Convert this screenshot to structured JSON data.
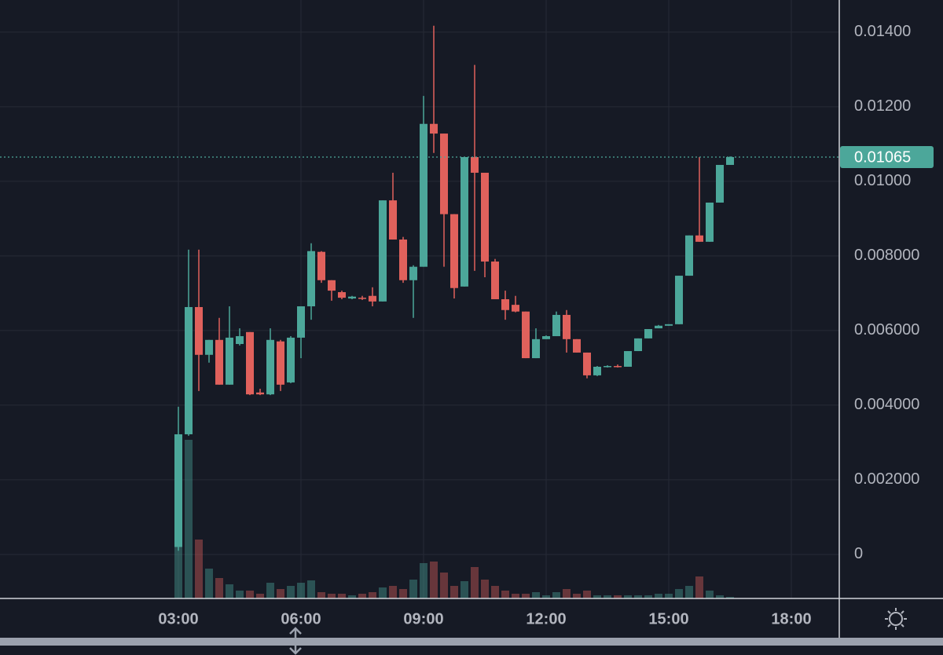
{
  "chart_data": {
    "type": "candlestick",
    "x": [
      "03:00",
      "03:15",
      "03:30",
      "03:45",
      "04:00",
      "04:15",
      "04:30",
      "04:45",
      "05:00",
      "05:15",
      "05:30",
      "05:45",
      "06:00",
      "06:15",
      "06:30",
      "06:45",
      "07:00",
      "07:15",
      "07:30",
      "07:45",
      "08:00",
      "08:15",
      "08:30",
      "08:45",
      "09:00",
      "09:15",
      "09:30",
      "09:45",
      "10:00",
      "10:15",
      "10:30",
      "10:45",
      "11:00",
      "11:15",
      "11:30",
      "11:45",
      "12:00",
      "12:15",
      "12:30",
      "12:45",
      "13:00",
      "13:15",
      "13:30",
      "13:45",
      "14:00",
      "14:15",
      "14:30",
      "14:45",
      "15:00",
      "15:15",
      "15:30",
      "15:45",
      "16:00",
      "16:15",
      "16:30"
    ],
    "open": [
      0.0002,
      0.00322,
      0.00663,
      0.00535,
      0.00575,
      0.00455,
      0.00564,
      0.00596,
      0.00434,
      0.00429,
      0.00571,
      0.00461,
      0.00581,
      0.00665,
      0.00811,
      0.00735,
      0.00703,
      0.00686,
      0.00688,
      0.00693,
      0.00678,
      0.00949,
      0.00844,
      0.00735,
      0.00771,
      0.01154,
      0.01128,
      0.00912,
      0.00718,
      0.01065,
      0.01023,
      0.00785,
      0.00684,
      0.00669,
      0.00651,
      0.00526,
      0.00577,
      0.00585,
      0.00642,
      0.00577,
      0.00541,
      0.0048,
      0.00503,
      0.00505,
      0.00503,
      0.00545,
      0.00579,
      0.00606,
      0.00613,
      0.00617,
      0.00747,
      0.00855,
      0.00838,
      0.00943,
      0.01044
    ],
    "high": [
      0.00396,
      0.00817,
      0.00817,
      0.00575,
      0.00634,
      0.00665,
      0.00606,
      0.00596,
      0.00444,
      0.00606,
      0.00575,
      0.00585,
      0.00665,
      0.00834,
      0.00813,
      0.00735,
      0.00707,
      0.00693,
      0.00693,
      0.00716,
      0.00949,
      0.01023,
      0.00851,
      0.00775,
      0.01229,
      0.01417,
      0.01128,
      0.00912,
      0.01065,
      0.01312,
      0.01023,
      0.00792,
      0.00707,
      0.00693,
      0.00651,
      0.00606,
      0.00587,
      0.00651,
      0.00655,
      0.00577,
      0.00541,
      0.00505,
      0.00507,
      0.00509,
      0.00545,
      0.00579,
      0.00604,
      0.00615,
      0.00617,
      0.00747,
      0.00855,
      0.01065,
      0.00943,
      0.01044,
      0.01067
    ],
    "low": [
      0.0001,
      0.00318,
      0.00438,
      0.00514,
      0.00455,
      0.00455,
      0.0056,
      0.00427,
      0.00427,
      0.00427,
      0.00438,
      0.00459,
      0.00526,
      0.00629,
      0.00728,
      0.0068,
      0.00684,
      0.00684,
      0.00682,
      0.00665,
      0.00678,
      0.00844,
      0.00728,
      0.00634,
      0.00771,
      0.01076,
      0.00771,
      0.00686,
      0.00718,
      0.0076,
      0.00743,
      0.00684,
      0.00629,
      0.00649,
      0.00526,
      0.00526,
      0.00577,
      0.00585,
      0.00541,
      0.00541,
      0.00472,
      0.00478,
      0.00501,
      0.00501,
      0.00503,
      0.00545,
      0.00579,
      0.00606,
      0.00613,
      0.00617,
      0.00747,
      0.00838,
      0.00838,
      0.00943,
      0.01044
    ],
    "close": [
      0.00322,
      0.00663,
      0.00535,
      0.00575,
      0.00455,
      0.00581,
      0.00585,
      0.00429,
      0.00429,
      0.00575,
      0.00455,
      0.00581,
      0.00665,
      0.00813,
      0.00735,
      0.00707,
      0.00688,
      0.00691,
      0.00686,
      0.00678,
      0.00949,
      0.00844,
      0.00735,
      0.00771,
      0.01154,
      0.01128,
      0.00912,
      0.00714,
      0.01065,
      0.01023,
      0.00785,
      0.00684,
      0.00655,
      0.00651,
      0.00526,
      0.00577,
      0.00585,
      0.00642,
      0.00577,
      0.00541,
      0.0048,
      0.00503,
      0.00505,
      0.00503,
      0.00545,
      0.00579,
      0.00604,
      0.00613,
      0.00617,
      0.00747,
      0.00855,
      0.00838,
      0.00943,
      0.01044,
      0.01065
    ],
    "volume": [
      67,
      202,
      75,
      38,
      26,
      18,
      10,
      10,
      6,
      20,
      12,
      16,
      20,
      23,
      8,
      6,
      6,
      4,
      6,
      8,
      14,
      16,
      12,
      24,
      45,
      47,
      33,
      16,
      22,
      40,
      24,
      16,
      10,
      6,
      6,
      8,
      4,
      8,
      12,
      6,
      10,
      4,
      4,
      4,
      4,
      4,
      4,
      6,
      6,
      12,
      16,
      28,
      10,
      4,
      2
    ],
    "up_color": "#4ca79a",
    "down_color": "#e0615c",
    "ylim": [
      -0.00118,
      0.01486
    ],
    "yticks": [
      0,
      {
        "value": 0.002,
        "label": "0.002000"
      },
      {
        "value": 0.004,
        "label": "0.004000"
      },
      {
        "value": 0.006,
        "label": "0.006000"
      },
      {
        "value": 0.008,
        "label": "0.008000"
      },
      {
        "value": 0.01,
        "label": "0.01000"
      },
      {
        "value": 0.012,
        "label": "0.01200"
      },
      {
        "value": 0.014,
        "label": "0.01400"
      }
    ],
    "xticks": [
      "03:00",
      "06:00",
      "09:00",
      "12:00",
      "15:00",
      "18:00"
    ],
    "grid": true,
    "last_price": {
      "value": 0.01065,
      "label": "0.01065"
    }
  }
}
